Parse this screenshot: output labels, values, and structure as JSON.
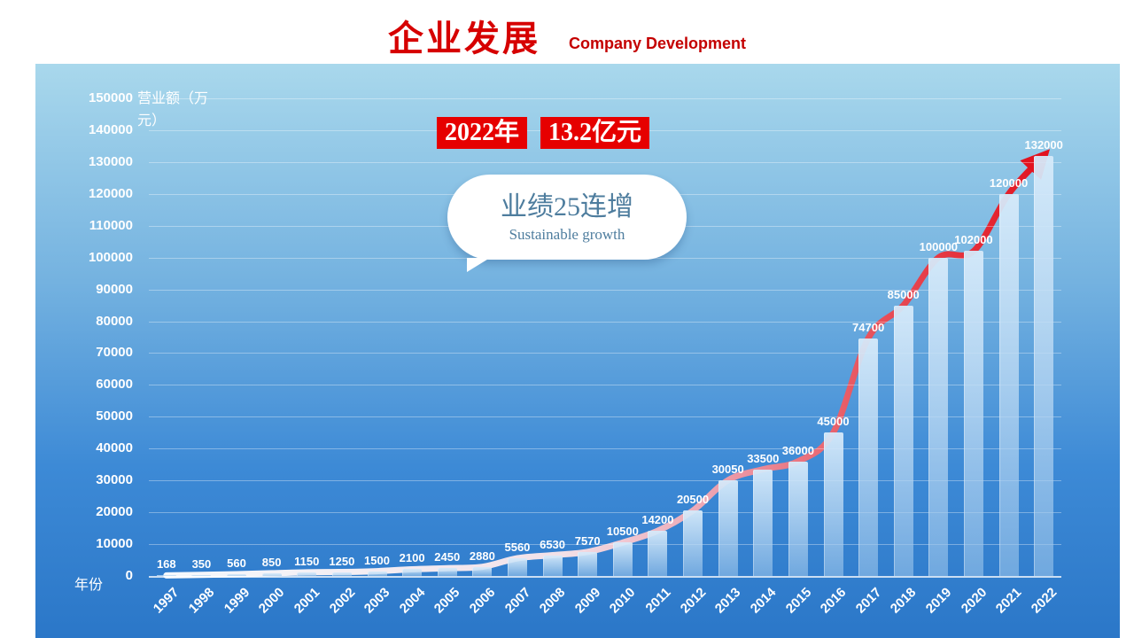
{
  "header": {
    "title": "企业发展",
    "subtitle": "Company Development"
  },
  "badge": {
    "year": "2022年",
    "amount": "13.2亿元"
  },
  "callout": {
    "line1": "业绩25连增",
    "line2": "Sustainable growth"
  },
  "chart_data": {
    "type": "bar",
    "title": "企业发展 Company Development",
    "xlabel": "年份",
    "ylabel": "营业额（万元）",
    "ylim": [
      0,
      150000
    ],
    "ytick_step": 10000,
    "grid": true,
    "legend": "none",
    "overlay": "red-growth-arrow-curve following bar tops from 1997 to 2022",
    "categories": [
      "1997",
      "1998",
      "1999",
      "2000",
      "2001",
      "2002",
      "2003",
      "2004",
      "2005",
      "2006",
      "2007",
      "2008",
      "2009",
      "2010",
      "2011",
      "2012",
      "2013",
      "2014",
      "2015",
      "2016",
      "2017",
      "2018",
      "2019",
      "2020",
      "2021",
      "2022"
    ],
    "values": [
      168,
      350,
      560,
      850,
      1150,
      1250,
      1500,
      2100,
      2450,
      2880,
      5560,
      6530,
      7570,
      10500,
      14200,
      20500,
      30050,
      33500,
      36000,
      45000,
      74700,
      85000,
      100000,
      102000,
      120000,
      132000
    ],
    "colors": {
      "panel_top": "#a9d8ec",
      "panel_bottom": "#2b77c8",
      "bar": "#bcd9f2",
      "arrow_red": "#e2131f",
      "text_white": "#ffffff",
      "title_red": "#d60000",
      "callout_blue": "#4e7d9e"
    }
  }
}
